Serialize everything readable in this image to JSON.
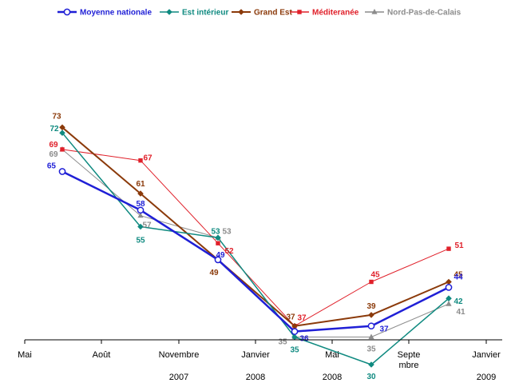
{
  "chart_data": {
    "type": "line",
    "x_ticks": [
      {
        "label": "Mai",
        "year": ""
      },
      {
        "label": "Août",
        "year": ""
      },
      {
        "label": "Novembre",
        "year": "2007"
      },
      {
        "label": "Janvier",
        "year": "2008"
      },
      {
        "label": "Mai",
        "year": "2008"
      },
      {
        "label": "Septe\nmbre",
        "year": ""
      },
      {
        "label": "Janvier",
        "year": "2009"
      }
    ],
    "ylim": [
      20,
      80
    ],
    "legend_position": "top",
    "series": [
      {
        "name": "Moyenne nationale",
        "color": "#1f1fd6",
        "marker": "circle",
        "width": 2.5,
        "values": [
          65,
          58,
          49,
          36,
          37,
          44
        ]
      },
      {
        "name": "Est intérieur",
        "color": "#0f8a80",
        "marker": "diamond",
        "width": 1.5,
        "values": [
          72,
          55,
          53,
          35,
          30,
          42
        ]
      },
      {
        "name": "Grand Est",
        "color": "#8b3a0a",
        "marker": "diamond",
        "width": 2,
        "values": [
          73,
          61,
          49,
          37,
          39,
          45
        ]
      },
      {
        "name": "Méditeranée",
        "color": "#e0202a",
        "marker": "square",
        "width": 1,
        "values": [
          69,
          67,
          52,
          37,
          45,
          51
        ]
      },
      {
        "name": "Nord-Pas-de-Calais",
        "color": "#8c8c8c",
        "marker": "triangle",
        "width": 1,
        "values": [
          69,
          57,
          53,
          35,
          35,
          41
        ]
      }
    ]
  }
}
